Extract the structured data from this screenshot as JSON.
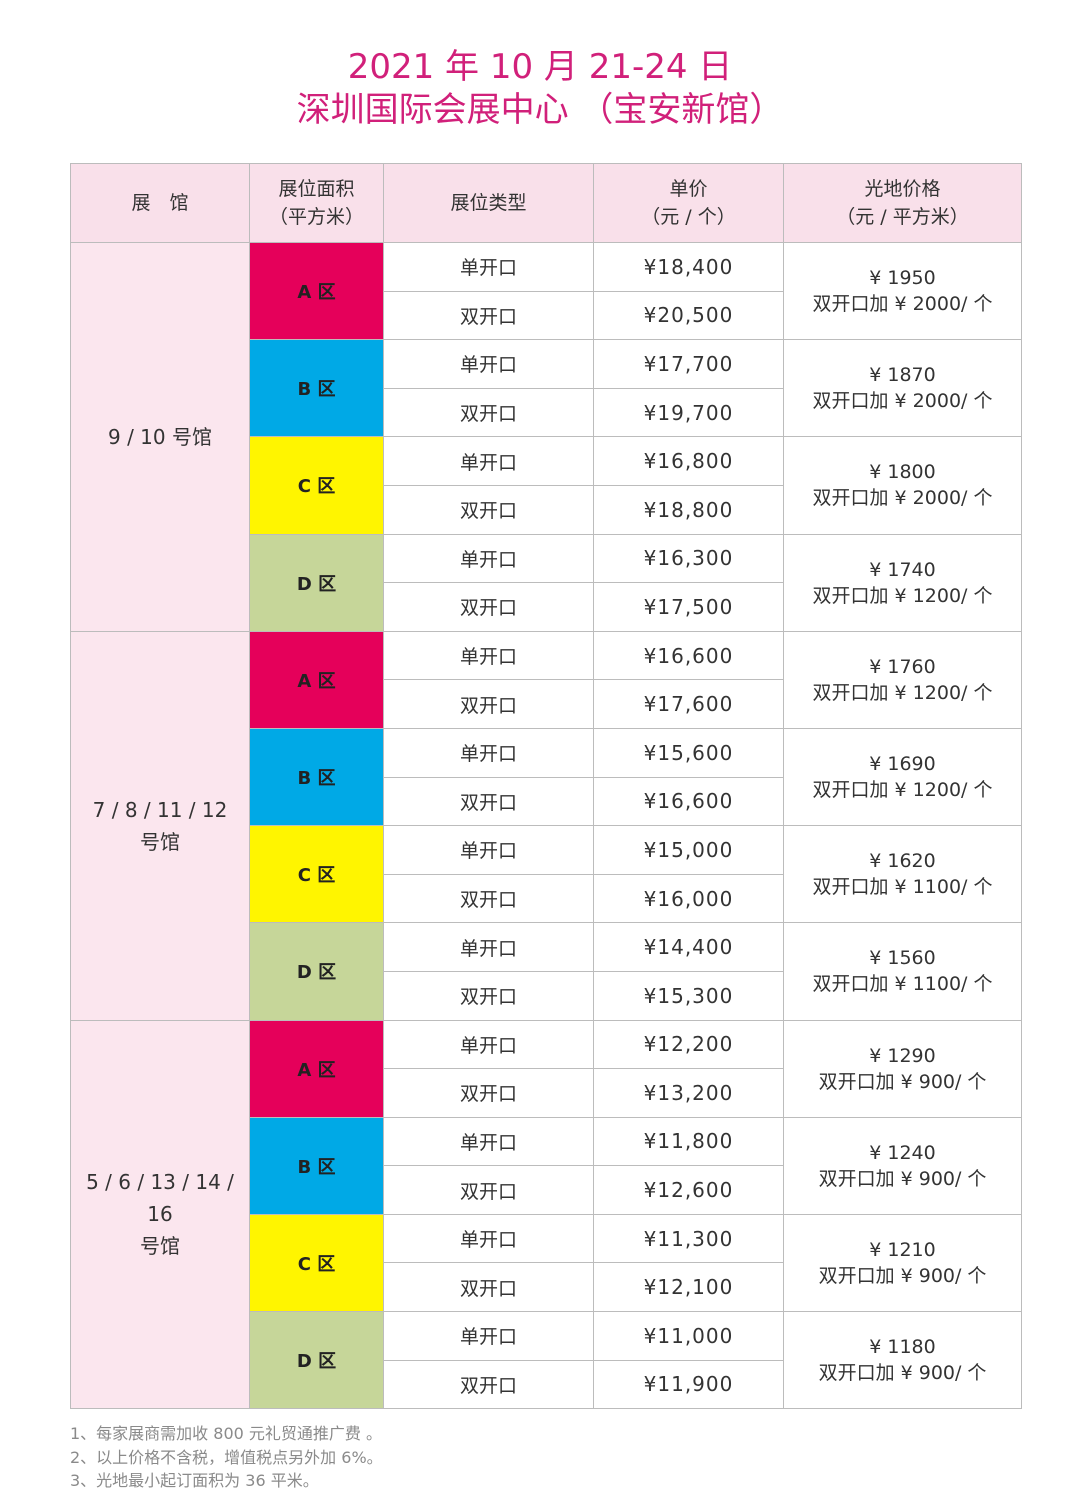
{
  "header": {
    "date_line": "2021 年 10 月 21-24 日",
    "venue_line": "深圳国际会展中心 （宝安新馆）"
  },
  "table": {
    "columns": [
      "展　馆",
      [
        "展位面积",
        "（平方米）"
      ],
      "展位类型",
      [
        "单价",
        "（元 / 个）"
      ],
      [
        "光地价格",
        "（元 / 平方米）"
      ]
    ],
    "zone_colors": {
      "A 区": "#e5005a",
      "B 区": "#00a9e6",
      "C 区": "#fff500",
      "D 区": "#c6d699"
    },
    "groups": [
      {
        "hall": [
          "9 / 10 号馆"
        ],
        "zones": [
          {
            "zone": "A 区",
            "rows": [
              {
                "type": "单开口",
                "price": "¥18,400"
              },
              {
                "type": "双开口",
                "price": "¥20,500"
              }
            ],
            "land": [
              "¥ 1950",
              "双开口加 ¥ 2000/ 个"
            ]
          },
          {
            "zone": "B 区",
            "rows": [
              {
                "type": "单开口",
                "price": "¥17,700"
              },
              {
                "type": "双开口",
                "price": "¥19,700"
              }
            ],
            "land": [
              "¥ 1870",
              "双开口加 ¥ 2000/ 个"
            ]
          },
          {
            "zone": "C 区",
            "rows": [
              {
                "type": "单开口",
                "price": "¥16,800"
              },
              {
                "type": "双开口",
                "price": "¥18,800"
              }
            ],
            "land": [
              "¥ 1800",
              "双开口加 ¥ 2000/ 个"
            ]
          },
          {
            "zone": "D 区",
            "rows": [
              {
                "type": "单开口",
                "price": "¥16,300"
              },
              {
                "type": "双开口",
                "price": "¥17,500"
              }
            ],
            "land": [
              "¥ 1740",
              "双开口加 ¥ 1200/ 个"
            ]
          }
        ]
      },
      {
        "hall": [
          "7 / 8 / 11 / 12",
          "号馆"
        ],
        "zones": [
          {
            "zone": "A 区",
            "rows": [
              {
                "type": "单开口",
                "price": "¥16,600"
              },
              {
                "type": "双开口",
                "price": "¥17,600"
              }
            ],
            "land": [
              "¥ 1760",
              "双开口加 ¥ 1200/ 个"
            ]
          },
          {
            "zone": "B 区",
            "rows": [
              {
                "type": "单开口",
                "price": "¥15,600"
              },
              {
                "type": "双开口",
                "price": "¥16,600"
              }
            ],
            "land": [
              "¥ 1690",
              "双开口加 ¥ 1200/ 个"
            ]
          },
          {
            "zone": "C 区",
            "rows": [
              {
                "type": "单开口",
                "price": "¥15,000"
              },
              {
                "type": "双开口",
                "price": "¥16,000"
              }
            ],
            "land": [
              "¥ 1620",
              "双开口加 ¥ 1100/ 个"
            ]
          },
          {
            "zone": "D 区",
            "rows": [
              {
                "type": "单开口",
                "price": "¥14,400"
              },
              {
                "type": "双开口",
                "price": "¥15,300"
              }
            ],
            "land": [
              "¥ 1560",
              "双开口加 ¥ 1100/ 个"
            ]
          }
        ]
      },
      {
        "hall": [
          "5 / 6 / 13 / 14 / 16",
          "号馆"
        ],
        "zones": [
          {
            "zone": "A 区",
            "rows": [
              {
                "type": "单开口",
                "price": "¥12,200"
              },
              {
                "type": "双开口",
                "price": "¥13,200"
              }
            ],
            "land": [
              "¥ 1290",
              "双开口加 ¥ 900/ 个"
            ]
          },
          {
            "zone": "B 区",
            "rows": [
              {
                "type": "单开口",
                "price": "¥11,800"
              },
              {
                "type": "双开口",
                "price": "¥12,600"
              }
            ],
            "land": [
              "¥ 1240",
              "双开口加 ¥ 900/ 个"
            ]
          },
          {
            "zone": "C 区",
            "rows": [
              {
                "type": "单开口",
                "price": "¥11,300"
              },
              {
                "type": "双开口",
                "price": "¥12,100"
              }
            ],
            "land": [
              "¥ 1210",
              "双开口加 ¥ 900/ 个"
            ]
          },
          {
            "zone": "D 区",
            "rows": [
              {
                "type": "单开口",
                "price": "¥11,000"
              },
              {
                "type": "双开口",
                "price": "¥11,900"
              }
            ],
            "land": [
              "¥ 1180",
              "双开口加 ¥ 900/ 个"
            ]
          }
        ]
      }
    ]
  },
  "notes": [
    "1、每家展商需加收 800 元礼贸通推广费 。",
    "2、以上价格不含税，增值税点另外加 6%。",
    "3、光地最小起订面积为 36 平米。"
  ]
}
